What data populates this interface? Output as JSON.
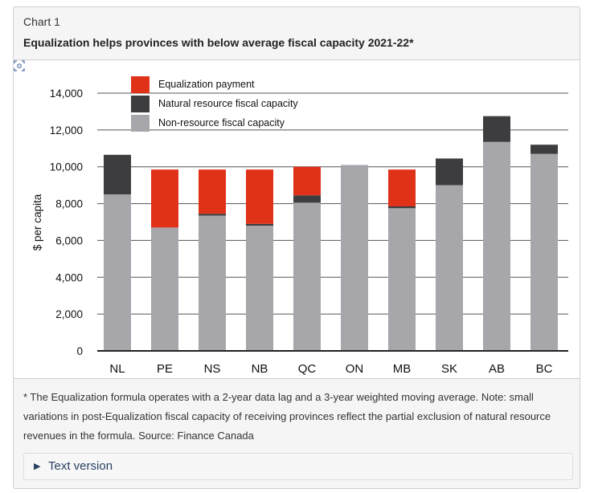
{
  "header": {
    "chart_number": "Chart 1",
    "title": "Equalization helps provinces with below average fiscal capacity 2021-22*"
  },
  "icons": {
    "expand": "expand-icon",
    "disclosure": "triangle-right-icon"
  },
  "footnote": "* The Equalization formula operates with a 2-year data lag and a 3-year weighted moving average. Note: small variations in post-Equalization fiscal capacity of receiving provinces reflect the partial exclusion of natural resource revenues in the formula. Source: Finance Canada",
  "details": {
    "label": "Text version"
  },
  "chart_data": {
    "type": "bar",
    "stacked": true,
    "title": "",
    "xlabel": "",
    "ylabel": "$ per capita",
    "ylim": [
      0,
      14000
    ],
    "yticks": [
      0,
      2000,
      4000,
      6000,
      8000,
      10000,
      12000,
      14000
    ],
    "ytick_labels": [
      "0",
      "2,000",
      "4,000",
      "6,000",
      "8,000",
      "10,000",
      "12,000",
      "14,000"
    ],
    "grid": "horizontal",
    "legend_position": "top-left",
    "categories": [
      "NL",
      "PE",
      "NS",
      "NB",
      "QC",
      "ON",
      "MB",
      "SK",
      "AB",
      "BC"
    ],
    "legend_order": [
      "Equalization payment",
      "Natural resource fiscal capacity",
      "Non-resource fiscal capacity"
    ],
    "series": [
      {
        "name": "Non-resource fiscal capacity",
        "color": "#a7a6ab",
        "values": [
          8500,
          6700,
          7350,
          6800,
          8050,
          10100,
          7750,
          9000,
          11350,
          10700
        ]
      },
      {
        "name": "Natural resource fiscal capacity",
        "color": "#3d3d3f",
        "values": [
          2150,
          0,
          100,
          100,
          400,
          0,
          100,
          1450,
          1400,
          500
        ]
      },
      {
        "name": "Equalization payment",
        "color": "#e03219",
        "values": [
          0,
          3150,
          2400,
          2950,
          1550,
          0,
          2000,
          0,
          0,
          0
        ]
      }
    ]
  }
}
